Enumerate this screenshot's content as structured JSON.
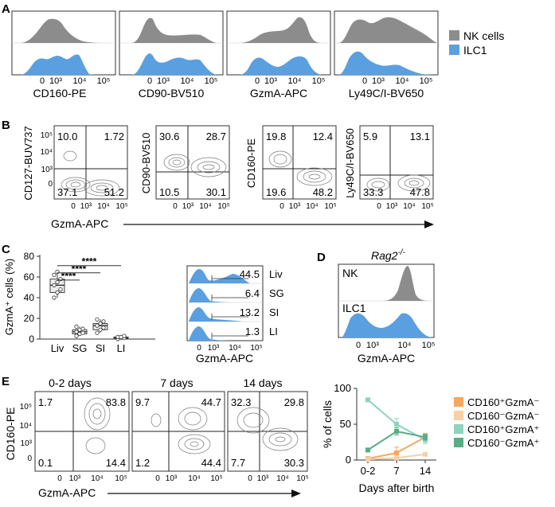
{
  "panels": {
    "a": "A",
    "b": "B",
    "c": "C",
    "d": "D",
    "e": "E"
  },
  "colors": {
    "nk": "#8c8c8c",
    "ilc1": "#5aa0e0",
    "s1": "#f4a862",
    "s2": "#f8d0a4",
    "s3": "#8fd3bd",
    "s4": "#58ad84"
  },
  "panel_a": {
    "histograms": [
      {
        "xlabel": "CD160-PE"
      },
      {
        "xlabel": "CD90-BV510"
      },
      {
        "xlabel": "GzmA-APC"
      },
      {
        "xlabel": "Ly49C/I-BV650"
      }
    ],
    "ticks": [
      "0",
      "10³",
      "10⁴",
      "10⁵"
    ],
    "legend": [
      {
        "label": "NK cells"
      },
      {
        "label": "ILC1"
      }
    ]
  },
  "panel_b": {
    "xlabel": "GzmA-APC",
    "yticks": [
      "10⁵",
      "10⁴",
      "10³",
      "0"
    ],
    "xticks": [
      "0",
      "10³",
      "10⁴",
      "10⁵"
    ],
    "plots": [
      {
        "ylabel": "CD127-BUV737",
        "q": [
          "10.0",
          "1.72",
          "37.1",
          "51.2"
        ]
      },
      {
        "ylabel": "CD90-BV510",
        "q": [
          "30.6",
          "28.7",
          "10.5",
          "30.1"
        ]
      },
      {
        "ylabel": "CD160-PE",
        "q": [
          "19.8",
          "12.4",
          "19.6",
          "48.2"
        ]
      },
      {
        "ylabel": "Ly49C/I-BV650",
        "q": [
          "5.9",
          "13.1",
          "33.3",
          "47.8"
        ]
      }
    ]
  },
  "panel_c": {
    "ylabel": "GzmA⁺ cells (%)",
    "yticks": [
      "0",
      "20",
      "40",
      "60",
      "80"
    ],
    "categories": [
      "Liv",
      "SG",
      "SI",
      "LI"
    ],
    "sig": [
      "****",
      "****",
      "****"
    ],
    "hist_values": [
      "44.5",
      "6.4",
      "13.2",
      "1.3"
    ],
    "hist_xlabel": "GzmA-APC",
    "ticks": [
      "0",
      "10³",
      "10⁴",
      "10⁵"
    ]
  },
  "panel_d": {
    "title": "Rag2",
    "title_sup": "-/-",
    "nk_label": "NK",
    "ilc1_label": "ILC1",
    "xlabel": "GzmA-APC",
    "ticks": [
      "0",
      "10³",
      "10⁴",
      "10⁵"
    ]
  },
  "panel_e": {
    "ylabel": "CD160-PE",
    "xlabel": "GzmA-APC",
    "yticks": [
      "10⁵",
      "10⁴",
      "10³",
      "0"
    ],
    "xticks": [
      "0",
      "10³",
      "10⁴",
      "10⁵"
    ],
    "plots": [
      {
        "title": "0-2 days",
        "q": [
          "1.7",
          "83.8",
          "0.1",
          "14.4"
        ]
      },
      {
        "title": "7 days",
        "q": [
          "9.7",
          "44.7",
          "1.2",
          "44.4"
        ]
      },
      {
        "title": "14 days",
        "q": [
          "32.3",
          "29.8",
          "7.7",
          "30.3"
        ]
      }
    ]
  },
  "chart_data": [
    {
      "type": "box",
      "title": "",
      "xlabel": "",
      "ylabel": "GzmA⁺ cells (%)",
      "ylim": [
        0,
        80
      ],
      "categories": [
        "Liv",
        "SG",
        "SI",
        "LI"
      ],
      "values": [
        [
          40,
          45,
          48,
          52,
          55,
          58,
          62,
          65
        ],
        [
          3,
          5,
          6,
          7,
          9,
          10,
          12
        ],
        [
          6,
          9,
          11,
          13,
          15,
          17,
          19
        ],
        [
          0,
          1,
          1,
          2,
          2,
          3
        ]
      ],
      "significance": [
        "****",
        "****",
        "****"
      ]
    },
    {
      "type": "line",
      "title": "",
      "xlabel": "Days after birth",
      "ylabel": "% of cells",
      "ylim": [
        0,
        100
      ],
      "yticks": [
        "0",
        "50",
        "100"
      ],
      "categories": [
        "0-2",
        "7",
        "14"
      ],
      "series": [
        {
          "name": "CD160⁺GzmA⁻",
          "values": [
            2,
            10,
            32
          ],
          "err": [
            1,
            8,
            5
          ]
        },
        {
          "name": "CD160⁻GzmA⁻",
          "values": [
            1,
            3,
            8
          ],
          "err": [
            1,
            2,
            2
          ]
        },
        {
          "name": "CD160⁺GzmA⁺",
          "values": [
            84,
            50,
            28
          ],
          "err": [
            2,
            8,
            5
          ]
        },
        {
          "name": "CD160⁻GzmA⁺",
          "values": [
            14,
            40,
            32
          ],
          "err": [
            2,
            5,
            4
          ]
        }
      ]
    }
  ]
}
